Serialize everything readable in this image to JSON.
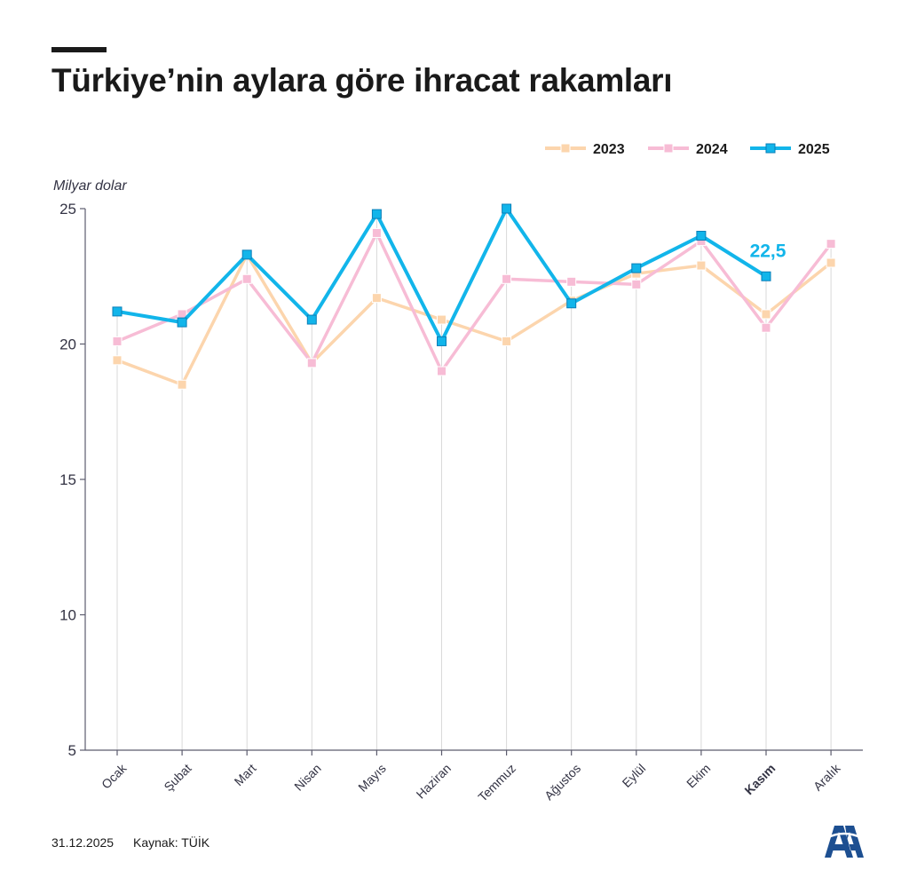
{
  "header": {
    "title": "Türkiye’nin aylara göre ihracat rakamları"
  },
  "footer": {
    "date": "31.12.2025",
    "source": "Kaynak: TÜİK"
  },
  "logo": {
    "icon": "aa-logo-icon",
    "color": "#1d4f91"
  },
  "chart_data": {
    "type": "line",
    "title": "Türkiye’nin aylara göre ihracat rakamları",
    "ylabel": "Milyar dolar",
    "xlabel": "",
    "ylim": [
      5,
      25
    ],
    "yticks": [
      5,
      10,
      15,
      20,
      25
    ],
    "grid": "vertical",
    "legend": "top-right",
    "categories": [
      "Ocak",
      "Şubat",
      "Mart",
      "Nisan",
      "Mayıs",
      "Haziran",
      "Temmuz",
      "Ağustos",
      "Eylül",
      "Ekim",
      "Kasım",
      "Aralık"
    ],
    "highlighted_category": "Kasım",
    "series": [
      {
        "name": "2023",
        "color": "#fcd5ad",
        "values": [
          19.4,
          18.5,
          23.3,
          19.3,
          21.7,
          20.9,
          20.1,
          21.6,
          22.6,
          22.9,
          21.1,
          23.0
        ]
      },
      {
        "name": "2024",
        "color": "#f7bcd5",
        "values": [
          20.1,
          21.1,
          22.4,
          19.3,
          24.1,
          19.0,
          22.4,
          22.3,
          22.2,
          23.8,
          20.6,
          23.7
        ]
      },
      {
        "name": "2025",
        "color": "#12b5ea",
        "values": [
          21.2,
          20.8,
          23.3,
          20.9,
          24.8,
          20.1,
          25.0,
          21.5,
          22.8,
          24.0,
          22.5,
          null
        ]
      }
    ],
    "annotations": [
      {
        "series": "2025",
        "category": "Kasım",
        "text": "22,5"
      }
    ]
  }
}
